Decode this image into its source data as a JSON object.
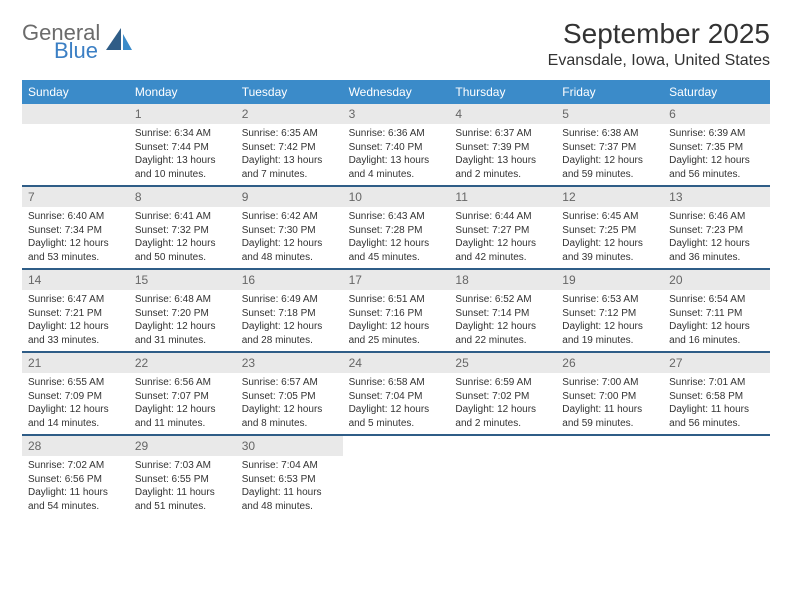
{
  "logo": {
    "general": "General",
    "blue": "Blue"
  },
  "title": "September 2025",
  "location": "Evansdale, Iowa, United States",
  "colors": {
    "header_bg": "#3b8bc9",
    "header_text": "#ffffff",
    "daynum_bg": "#e9e9e9",
    "daynum_text": "#666666",
    "rule": "#2f5d87",
    "body_text": "#333333",
    "logo_gray": "#6b6b6b",
    "logo_blue": "#3b7fc4"
  },
  "dayNames": [
    "Sunday",
    "Monday",
    "Tuesday",
    "Wednesday",
    "Thursday",
    "Friday",
    "Saturday"
  ],
  "weeks": [
    [
      {
        "n": "",
        "lines": []
      },
      {
        "n": "1",
        "lines": [
          "Sunrise: 6:34 AM",
          "Sunset: 7:44 PM",
          "Daylight: 13 hours and 10 minutes."
        ]
      },
      {
        "n": "2",
        "lines": [
          "Sunrise: 6:35 AM",
          "Sunset: 7:42 PM",
          "Daylight: 13 hours and 7 minutes."
        ]
      },
      {
        "n": "3",
        "lines": [
          "Sunrise: 6:36 AM",
          "Sunset: 7:40 PM",
          "Daylight: 13 hours and 4 minutes."
        ]
      },
      {
        "n": "4",
        "lines": [
          "Sunrise: 6:37 AM",
          "Sunset: 7:39 PM",
          "Daylight: 13 hours and 2 minutes."
        ]
      },
      {
        "n": "5",
        "lines": [
          "Sunrise: 6:38 AM",
          "Sunset: 7:37 PM",
          "Daylight: 12 hours and 59 minutes."
        ]
      },
      {
        "n": "6",
        "lines": [
          "Sunrise: 6:39 AM",
          "Sunset: 7:35 PM",
          "Daylight: 12 hours and 56 minutes."
        ]
      }
    ],
    [
      {
        "n": "7",
        "lines": [
          "Sunrise: 6:40 AM",
          "Sunset: 7:34 PM",
          "Daylight: 12 hours and 53 minutes."
        ]
      },
      {
        "n": "8",
        "lines": [
          "Sunrise: 6:41 AM",
          "Sunset: 7:32 PM",
          "Daylight: 12 hours and 50 minutes."
        ]
      },
      {
        "n": "9",
        "lines": [
          "Sunrise: 6:42 AM",
          "Sunset: 7:30 PM",
          "Daylight: 12 hours and 48 minutes."
        ]
      },
      {
        "n": "10",
        "lines": [
          "Sunrise: 6:43 AM",
          "Sunset: 7:28 PM",
          "Daylight: 12 hours and 45 minutes."
        ]
      },
      {
        "n": "11",
        "lines": [
          "Sunrise: 6:44 AM",
          "Sunset: 7:27 PM",
          "Daylight: 12 hours and 42 minutes."
        ]
      },
      {
        "n": "12",
        "lines": [
          "Sunrise: 6:45 AM",
          "Sunset: 7:25 PM",
          "Daylight: 12 hours and 39 minutes."
        ]
      },
      {
        "n": "13",
        "lines": [
          "Sunrise: 6:46 AM",
          "Sunset: 7:23 PM",
          "Daylight: 12 hours and 36 minutes."
        ]
      }
    ],
    [
      {
        "n": "14",
        "lines": [
          "Sunrise: 6:47 AM",
          "Sunset: 7:21 PM",
          "Daylight: 12 hours and 33 minutes."
        ]
      },
      {
        "n": "15",
        "lines": [
          "Sunrise: 6:48 AM",
          "Sunset: 7:20 PM",
          "Daylight: 12 hours and 31 minutes."
        ]
      },
      {
        "n": "16",
        "lines": [
          "Sunrise: 6:49 AM",
          "Sunset: 7:18 PM",
          "Daylight: 12 hours and 28 minutes."
        ]
      },
      {
        "n": "17",
        "lines": [
          "Sunrise: 6:51 AM",
          "Sunset: 7:16 PM",
          "Daylight: 12 hours and 25 minutes."
        ]
      },
      {
        "n": "18",
        "lines": [
          "Sunrise: 6:52 AM",
          "Sunset: 7:14 PM",
          "Daylight: 12 hours and 22 minutes."
        ]
      },
      {
        "n": "19",
        "lines": [
          "Sunrise: 6:53 AM",
          "Sunset: 7:12 PM",
          "Daylight: 12 hours and 19 minutes."
        ]
      },
      {
        "n": "20",
        "lines": [
          "Sunrise: 6:54 AM",
          "Sunset: 7:11 PM",
          "Daylight: 12 hours and 16 minutes."
        ]
      }
    ],
    [
      {
        "n": "21",
        "lines": [
          "Sunrise: 6:55 AM",
          "Sunset: 7:09 PM",
          "Daylight: 12 hours and 14 minutes."
        ]
      },
      {
        "n": "22",
        "lines": [
          "Sunrise: 6:56 AM",
          "Sunset: 7:07 PM",
          "Daylight: 12 hours and 11 minutes."
        ]
      },
      {
        "n": "23",
        "lines": [
          "Sunrise: 6:57 AM",
          "Sunset: 7:05 PM",
          "Daylight: 12 hours and 8 minutes."
        ]
      },
      {
        "n": "24",
        "lines": [
          "Sunrise: 6:58 AM",
          "Sunset: 7:04 PM",
          "Daylight: 12 hours and 5 minutes."
        ]
      },
      {
        "n": "25",
        "lines": [
          "Sunrise: 6:59 AM",
          "Sunset: 7:02 PM",
          "Daylight: 12 hours and 2 minutes."
        ]
      },
      {
        "n": "26",
        "lines": [
          "Sunrise: 7:00 AM",
          "Sunset: 7:00 PM",
          "Daylight: 11 hours and 59 minutes."
        ]
      },
      {
        "n": "27",
        "lines": [
          "Sunrise: 7:01 AM",
          "Sunset: 6:58 PM",
          "Daylight: 11 hours and 56 minutes."
        ]
      }
    ],
    [
      {
        "n": "28",
        "lines": [
          "Sunrise: 7:02 AM",
          "Sunset: 6:56 PM",
          "Daylight: 11 hours and 54 minutes."
        ]
      },
      {
        "n": "29",
        "lines": [
          "Sunrise: 7:03 AM",
          "Sunset: 6:55 PM",
          "Daylight: 11 hours and 51 minutes."
        ]
      },
      {
        "n": "30",
        "lines": [
          "Sunrise: 7:04 AM",
          "Sunset: 6:53 PM",
          "Daylight: 11 hours and 48 minutes."
        ]
      },
      {
        "n": "",
        "lines": []
      },
      {
        "n": "",
        "lines": []
      },
      {
        "n": "",
        "lines": []
      },
      {
        "n": "",
        "lines": []
      }
    ]
  ]
}
